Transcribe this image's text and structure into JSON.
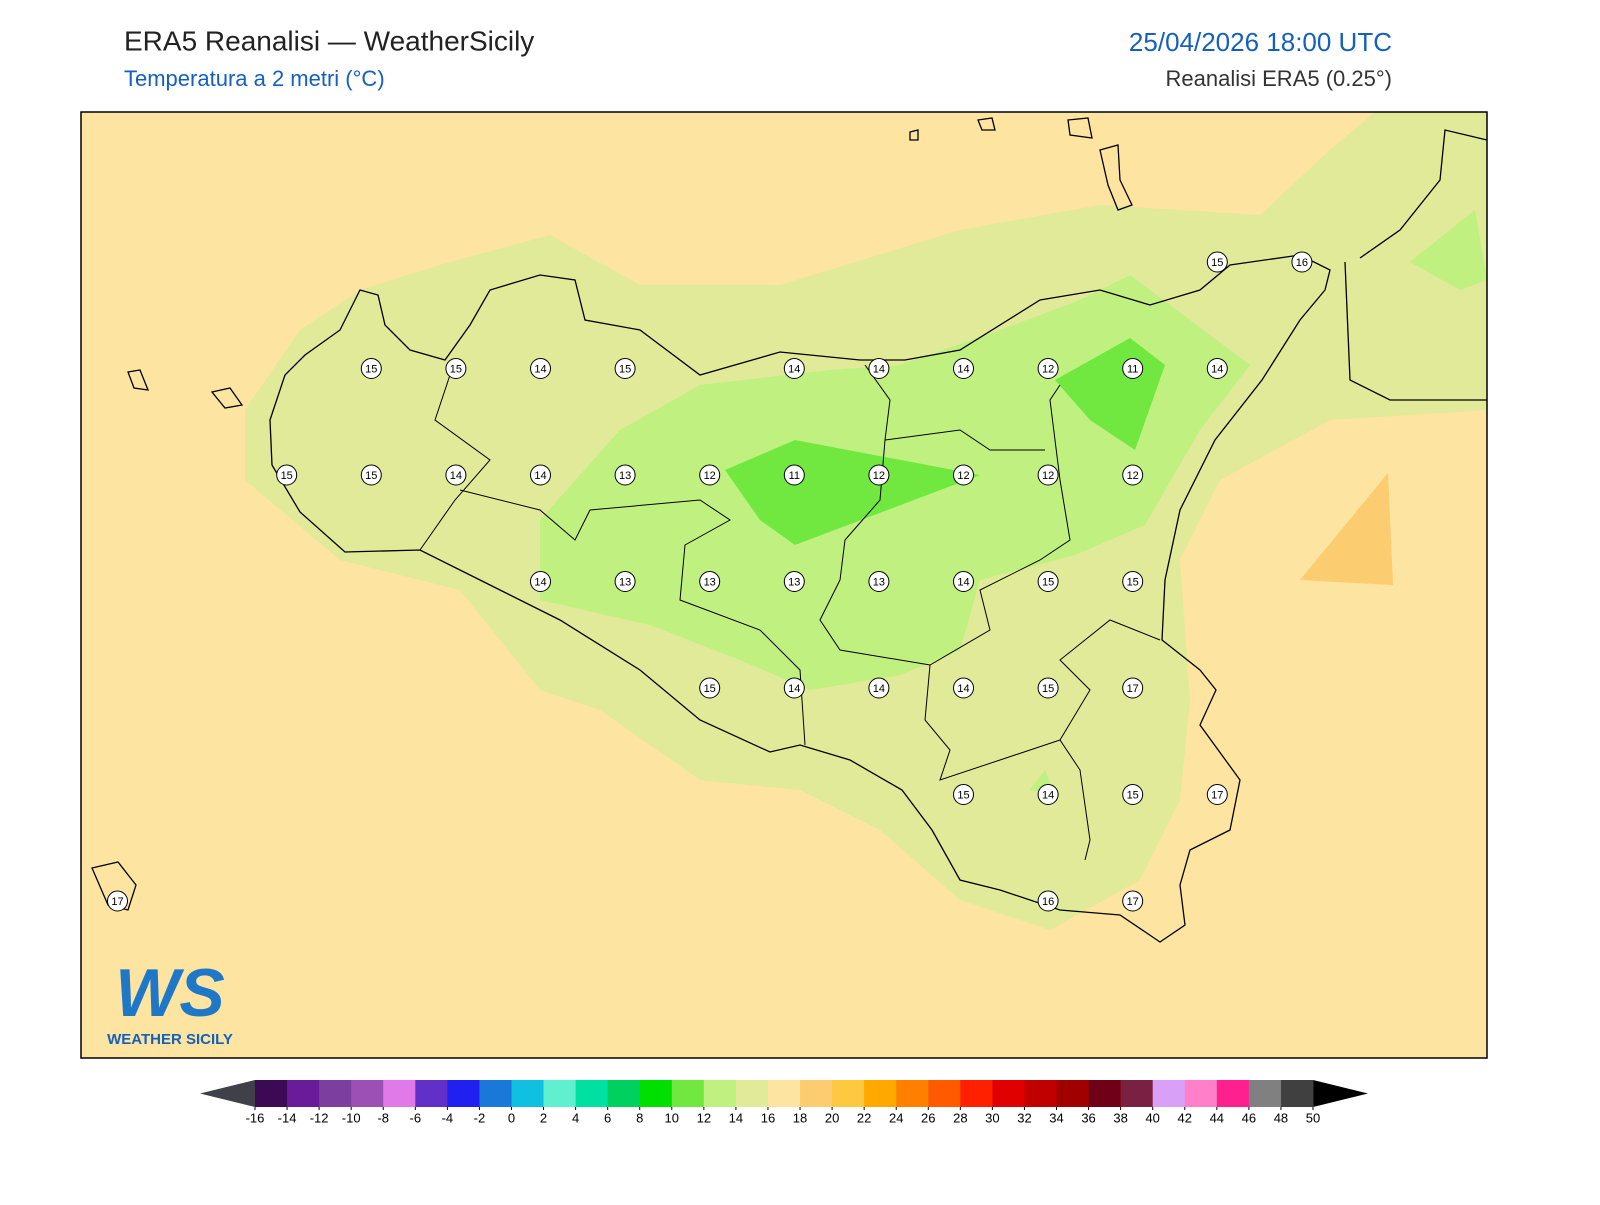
{
  "header": {
    "title": "ERA5 Reanalisi — WeatherSicily",
    "subtitle": "Temperatura a 2 metri (°C)",
    "datetime": "25/04/2026 18:00 UTC",
    "source": "Reanalisi ERA5 (0.25°)"
  },
  "map": {
    "background_color": "#fde4a0",
    "stations": [
      [
        null,
        null,
        null,
        null,
        null,
        null,
        null,
        null,
        null,
        null,
        null,
        null,
        null,
        15,
        16
      ],
      [
        null,
        null,
        null,
        15,
        15,
        14,
        15,
        null,
        14,
        14,
        14,
        12,
        11,
        14,
        null
      ],
      [
        null,
        null,
        15,
        15,
        14,
        14,
        13,
        12,
        11,
        12,
        12,
        12,
        12,
        null,
        null
      ],
      [
        null,
        null,
        null,
        null,
        null,
        14,
        13,
        13,
        13,
        13,
        14,
        15,
        15,
        null,
        null
      ],
      [
        null,
        null,
        null,
        null,
        null,
        null,
        null,
        15,
        14,
        14,
        14,
        15,
        17,
        null,
        null
      ],
      [
        null,
        null,
        null,
        null,
        null,
        null,
        null,
        null,
        null,
        null,
        15,
        14,
        15,
        17,
        null
      ],
      [
        17,
        null,
        null,
        null,
        null,
        null,
        null,
        null,
        null,
        null,
        null,
        16,
        17,
        null,
        null
      ]
    ]
  },
  "logo": {
    "letters": "WS",
    "name": "WEATHER SICILY"
  },
  "colorbar": {
    "ticks": [
      -16,
      -14,
      -12,
      -10,
      -8,
      -6,
      -4,
      -2,
      0,
      2,
      4,
      6,
      8,
      10,
      12,
      14,
      16,
      18,
      20,
      22,
      24,
      26,
      28,
      30,
      32,
      34,
      36,
      38,
      40,
      42,
      44,
      46,
      48,
      50
    ],
    "colors": [
      "#3c0a55",
      "#6a1b9a",
      "#7b3fa0",
      "#9c4fb5",
      "#e07ae8",
      "#6030c8",
      "#2020f0",
      "#1a78d8",
      "#10c0e0",
      "#60f0d0",
      "#00e0a0",
      "#00d060",
      "#00e000",
      "#70e840",
      "#c0f080",
      "#e0ea98",
      "#fde4a0",
      "#fccc70",
      "#fec840",
      "#ffa800",
      "#ff8000",
      "#ff5a00",
      "#ff2000",
      "#e00000",
      "#c00000",
      "#a00000",
      "#700018",
      "#7a2040",
      "#d9a0f8",
      "#ff80c8",
      "#ff2090",
      "#808080",
      "#404040"
    ],
    "under_color": "#404048",
    "over_color": "#000000"
  }
}
